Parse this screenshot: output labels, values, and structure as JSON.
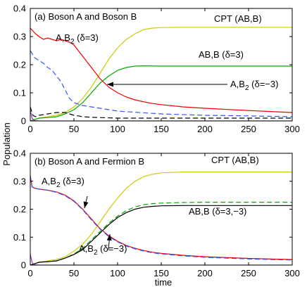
{
  "figure": {
    "ylabel": "Population",
    "xlabel": "time"
  },
  "chart_data": [
    {
      "type": "line",
      "title": "(a) Boson A and Boson B",
      "xlabel": "",
      "ylabel": "Population",
      "xlim": [
        0,
        300
      ],
      "ylim": [
        0,
        0.4
      ],
      "xticks": [
        0,
        50,
        100,
        150,
        200,
        250,
        300
      ],
      "yticks": [
        0,
        0.1,
        0.2,
        0.3,
        0.4
      ],
      "grid": false,
      "annotations": [
        {
          "text": "CPT (AB,B)"
        },
        {
          "text": "AB,B (δ=3)"
        },
        {
          "text": "A,B2 (δ=3)"
        },
        {
          "text": "A,B2 (δ=−3)"
        }
      ],
      "series": [
        {
          "color": "#cccc00",
          "dash": "solid",
          "x": [
            0,
            10,
            20,
            30,
            40,
            50,
            60,
            70,
            80,
            90,
            100,
            110,
            120,
            130,
            140,
            150,
            170,
            200,
            250,
            300
          ],
          "y": [
            0.0,
            0.01,
            0.015,
            0.02,
            0.03,
            0.05,
            0.08,
            0.12,
            0.17,
            0.22,
            0.26,
            0.29,
            0.31,
            0.325,
            0.33,
            0.332,
            0.333,
            0.333,
            0.333,
            0.333
          ]
        },
        {
          "color": "#00aa00",
          "dash": "solid",
          "x": [
            0,
            10,
            20,
            30,
            40,
            50,
            60,
            70,
            80,
            90,
            100,
            110,
            120,
            130,
            150,
            200,
            250,
            300
          ],
          "y": [
            0.0,
            0.01,
            0.012,
            0.015,
            0.025,
            0.04,
            0.065,
            0.1,
            0.135,
            0.16,
            0.18,
            0.19,
            0.195,
            0.196,
            0.195,
            0.195,
            0.195,
            0.195
          ]
        },
        {
          "color": "#ee0000",
          "dash": "solid",
          "x": [
            0,
            3,
            6,
            10,
            15,
            20,
            25,
            30,
            35,
            40,
            45,
            50,
            55,
            60,
            70,
            80,
            90,
            100,
            110,
            120,
            130,
            140,
            150,
            175,
            200,
            250,
            300
          ],
          "y": [
            0.33,
            0.32,
            0.31,
            0.3,
            0.29,
            0.295,
            0.29,
            0.285,
            0.29,
            0.285,
            0.28,
            0.27,
            0.25,
            0.23,
            0.19,
            0.15,
            0.12,
            0.1,
            0.085,
            0.075,
            0.068,
            0.062,
            0.058,
            0.05,
            0.045,
            0.037,
            0.03
          ]
        },
        {
          "color": "#3355ff",
          "dash": "dashed",
          "x": [
            0,
            5,
            10,
            15,
            20,
            25,
            30,
            35,
            40,
            45,
            50,
            55,
            60,
            70,
            80,
            100,
            150,
            200,
            250,
            300
          ],
          "y": [
            0.25,
            0.225,
            0.215,
            0.205,
            0.19,
            0.18,
            0.16,
            0.14,
            0.11,
            0.08,
            0.065,
            0.06,
            0.055,
            0.05,
            0.045,
            0.035,
            0.025,
            0.02,
            0.018,
            0.015
          ]
        },
        {
          "color": "#000000",
          "dash": "dashed",
          "x": [
            0,
            3,
            6,
            10,
            20,
            30,
            40,
            45,
            50,
            55,
            60,
            70,
            80,
            100,
            150,
            200,
            250,
            300
          ],
          "y": [
            0.05,
            0.02,
            0.015,
            0.02,
            0.025,
            0.03,
            0.03,
            0.025,
            0.02,
            0.018,
            0.015,
            0.013,
            0.012,
            0.01,
            0.01,
            0.01,
            0.01,
            0.01
          ]
        },
        {
          "color": "#9933cc",
          "dash": "solid",
          "x": [
            0,
            2,
            4,
            6,
            10,
            50,
            100,
            150,
            200,
            250,
            300
          ],
          "y": [
            0.04,
            0.01,
            0.003,
            0.001,
            0.0,
            0.0,
            0.0,
            0.0,
            0.0,
            0.0,
            0.0
          ]
        }
      ]
    },
    {
      "type": "line",
      "title": "(b) Boson A and Fermion B",
      "xlabel": "time",
      "ylabel": "",
      "xlim": [
        0,
        300
      ],
      "ylim": [
        0,
        0.4
      ],
      "xticks": [
        0,
        50,
        100,
        150,
        200,
        250,
        300
      ],
      "yticks": [
        0,
        0.1,
        0.2,
        0.3,
        0.4
      ],
      "grid": false,
      "annotations": [
        {
          "text": "CPT (AB,B)"
        },
        {
          "text": "A,B2 (δ=3)"
        },
        {
          "text": "AB,B (δ=3,−3)"
        },
        {
          "text": "A,B2 (δ=−3)"
        }
      ],
      "series": [
        {
          "color": "#cccc00",
          "dash": "solid",
          "x": [
            0,
            10,
            20,
            30,
            40,
            50,
            60,
            70,
            80,
            90,
            100,
            110,
            120,
            130,
            140,
            150,
            175,
            200,
            250,
            300
          ],
          "y": [
            0.0,
            0.01,
            0.015,
            0.02,
            0.03,
            0.05,
            0.075,
            0.11,
            0.155,
            0.2,
            0.24,
            0.275,
            0.3,
            0.317,
            0.325,
            0.33,
            0.333,
            0.333,
            0.333,
            0.333
          ]
        },
        {
          "color": "#00aa00",
          "dash": "dashed",
          "x": [
            0,
            10,
            20,
            30,
            40,
            50,
            60,
            70,
            80,
            90,
            100,
            110,
            120,
            130,
            140,
            150,
            175,
            200,
            250,
            300
          ],
          "y": [
            0.0,
            0.01,
            0.012,
            0.015,
            0.025,
            0.04,
            0.06,
            0.09,
            0.12,
            0.15,
            0.175,
            0.195,
            0.208,
            0.216,
            0.22,
            0.222,
            0.224,
            0.225,
            0.225,
            0.225
          ]
        },
        {
          "color": "#000000",
          "dash": "solid",
          "x": [
            0,
            10,
            20,
            30,
            40,
            50,
            60,
            70,
            80,
            90,
            100,
            110,
            120,
            130,
            140,
            150,
            175,
            200,
            250,
            300
          ],
          "y": [
            0.0,
            0.01,
            0.012,
            0.015,
            0.025,
            0.038,
            0.055,
            0.085,
            0.115,
            0.145,
            0.17,
            0.188,
            0.2,
            0.207,
            0.21,
            0.212,
            0.213,
            0.213,
            0.213,
            0.213
          ]
        },
        {
          "color": "#ee0000",
          "dash": "solid",
          "x": [
            0,
            2,
            5,
            10,
            20,
            30,
            40,
            50,
            60,
            70,
            80,
            90,
            100,
            110,
            120,
            130,
            140,
            150,
            175,
            200,
            250,
            300
          ],
          "y": [
            0.32,
            0.28,
            0.275,
            0.272,
            0.268,
            0.262,
            0.25,
            0.23,
            0.2,
            0.165,
            0.13,
            0.105,
            0.085,
            0.07,
            0.06,
            0.052,
            0.046,
            0.042,
            0.035,
            0.03,
            0.024,
            0.02
          ]
        },
        {
          "color": "#3355ff",
          "dash": "dashed",
          "x": [
            0,
            2,
            5,
            10,
            20,
            30,
            40,
            50,
            60,
            70,
            80,
            90,
            100,
            110,
            120,
            130,
            140,
            150,
            175,
            200,
            250,
            300
          ],
          "y": [
            0.32,
            0.28,
            0.275,
            0.272,
            0.268,
            0.26,
            0.248,
            0.228,
            0.198,
            0.162,
            0.128,
            0.102,
            0.083,
            0.068,
            0.058,
            0.05,
            0.044,
            0.04,
            0.033,
            0.028,
            0.022,
            0.018
          ]
        },
        {
          "color": "#9933cc",
          "dash": "solid",
          "x": [
            0,
            2,
            4,
            6,
            10,
            50,
            100,
            150,
            200,
            250,
            300
          ],
          "y": [
            0.04,
            0.01,
            0.003,
            0.001,
            0.0,
            0.0,
            0.0,
            0.0,
            0.0,
            0.0,
            0.0
          ]
        }
      ]
    }
  ]
}
